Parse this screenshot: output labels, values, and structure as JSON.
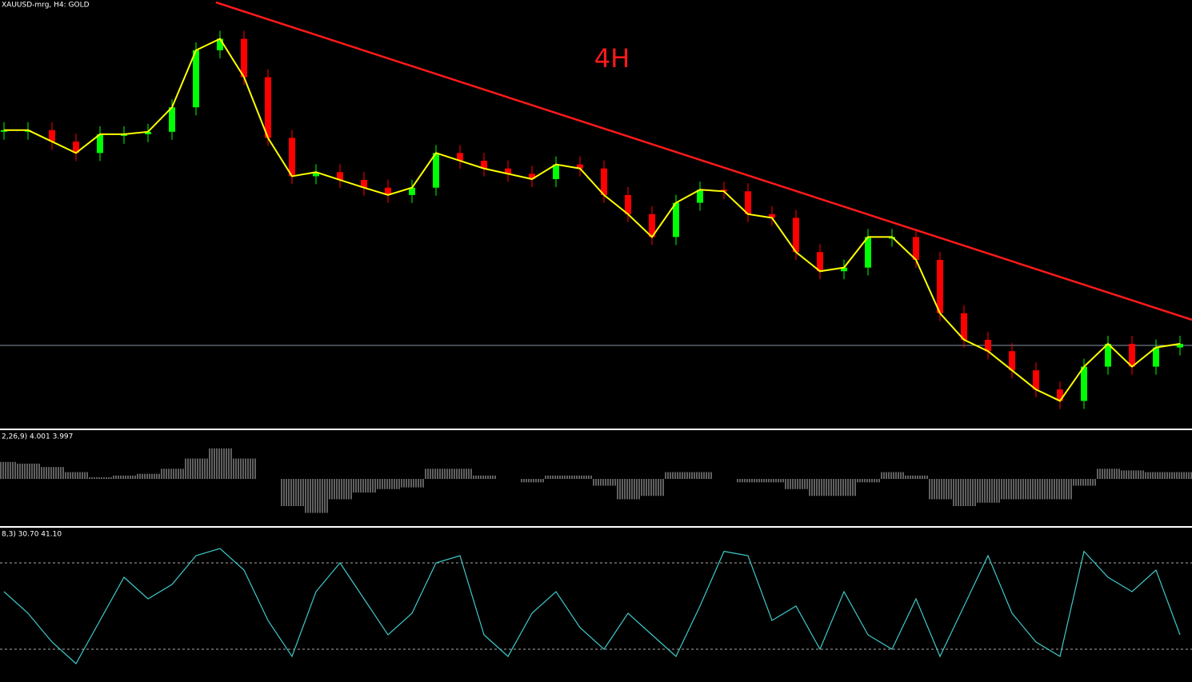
{
  "header": {
    "title": "XAUUSD-mrg, H4:  GOLD"
  },
  "annotation": "4H",
  "chart_data": [
    {
      "type": "candlestick",
      "color_up": "#00ff00",
      "color_down": "#ff0000",
      "line_color": "#ffff00",
      "values": [
        72.0,
        72.0,
        69.2,
        66.4,
        71.0,
        71.0,
        71.6,
        77.6,
        91.6,
        94.4,
        85.0,
        70.1,
        60.7,
        61.7,
        59.8,
        57.9,
        56.1,
        57.9,
        66.4,
        64.5,
        62.6,
        61.3,
        60.0,
        63.6,
        62.6,
        56.1,
        51.4,
        45.8,
        54.2,
        57.4,
        57.0,
        51.4,
        50.5,
        42.1,
        37.4,
        38.3,
        45.8,
        45.8,
        40.2,
        27.1,
        20.6,
        17.8,
        13.1,
        8.4,
        5.6,
        14.0,
        19.6,
        14.0,
        18.7,
        19.6
      ],
      "ylim": [
        0,
        100
      ]
    },
    {
      "type": "histogram",
      "label": "2,26,9) 4.001 3.997",
      "color": "#c0c0c0",
      "values": [
        0.5,
        0.45,
        0.35,
        0.2,
        0.05,
        0.1,
        0.15,
        0.3,
        0.6,
        0.9,
        0.6,
        0.0,
        -0.8,
        -1.0,
        -0.6,
        -0.4,
        -0.3,
        -0.25,
        0.3,
        0.3,
        0.1,
        0.0,
        -0.1,
        0.1,
        0.1,
        -0.2,
        -0.6,
        -0.5,
        0.2,
        0.2,
        0.0,
        -0.1,
        -0.1,
        -0.3,
        -0.5,
        -0.5,
        -0.1,
        0.2,
        0.1,
        -0.6,
        -0.8,
        -0.7,
        -0.6,
        -0.6,
        -0.6,
        -0.2,
        0.3,
        0.25,
        0.2,
        0.2
      ],
      "ylim": [
        -1.2,
        1.2
      ]
    },
    {
      "type": "line",
      "label": "8,3) 30.70 41.10",
      "color": "#40c8c8",
      "values": [
        60,
        45,
        25,
        10,
        40,
        70,
        55,
        65,
        85,
        90,
        75,
        40,
        15,
        60,
        80,
        55,
        30,
        45,
        80,
        85,
        30,
        15,
        45,
        60,
        35,
        20,
        45,
        30,
        15,
        50,
        88,
        85,
        40,
        50,
        20,
        60,
        30,
        20,
        55,
        15,
        50,
        85,
        45,
        25,
        15,
        88,
        70,
        60,
        75,
        30
      ],
      "levels": [
        20,
        80
      ],
      "ylim": [
        0,
        100
      ]
    }
  ]
}
